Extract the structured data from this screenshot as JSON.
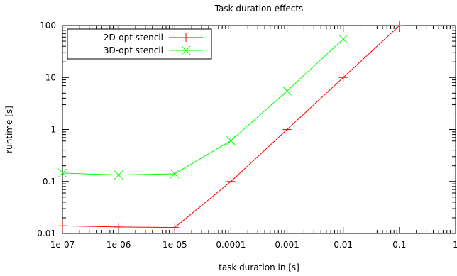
{
  "chart_data": {
    "type": "line",
    "title": "Task duration effects",
    "xlabel": "task duration in [s]",
    "ylabel": "runtime [s]",
    "x_scale": "log",
    "y_scale": "log",
    "xlim": [
      1e-07,
      1
    ],
    "ylim": [
      0.01,
      100
    ],
    "x_ticks": [
      {
        "value": 1e-07,
        "label": "1e-07"
      },
      {
        "value": 1e-06,
        "label": "1e-06"
      },
      {
        "value": 1e-05,
        "label": "1e-05"
      },
      {
        "value": 0.0001,
        "label": "0.0001"
      },
      {
        "value": 0.001,
        "label": "0.001"
      },
      {
        "value": 0.01,
        "label": "0.01"
      },
      {
        "value": 0.1,
        "label": "0.1"
      },
      {
        "value": 1,
        "label": "1"
      }
    ],
    "y_ticks": [
      {
        "value": 0.01,
        "label": "0.01"
      },
      {
        "value": 0.1,
        "label": "0.1"
      },
      {
        "value": 1,
        "label": "1"
      },
      {
        "value": 10,
        "label": "10"
      },
      {
        "value": 100,
        "label": "100"
      }
    ],
    "grid": false,
    "legend_position": "top-left",
    "series": [
      {
        "name": "2D-opt stencil",
        "color": "#ff0000",
        "marker": "plus",
        "x": [
          1e-07,
          1e-06,
          1e-05,
          0.0001,
          0.001,
          0.01,
          0.1
        ],
        "y": [
          0.014,
          0.0133,
          0.013,
          0.1,
          1.0,
          10.0,
          100.0
        ]
      },
      {
        "name": "3D-opt stencil",
        "color": "#00ff00",
        "marker": "cross",
        "x": [
          1e-07,
          1e-06,
          1e-05,
          0.0001,
          0.001,
          0.01
        ],
        "y": [
          0.145,
          0.133,
          0.14,
          0.61,
          5.5,
          55.0
        ]
      }
    ]
  }
}
